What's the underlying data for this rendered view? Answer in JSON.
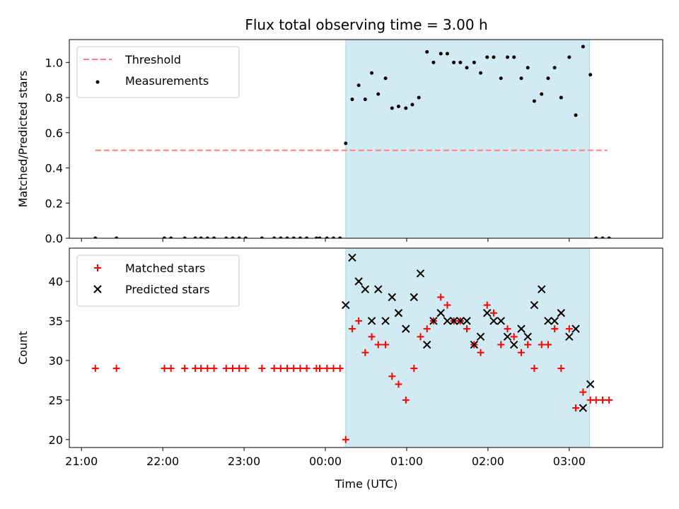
{
  "chart_data": {
    "title": "Flux total observing time = 3.00 h",
    "xlabel": "Time (UTC)",
    "x_ticks": [
      "21:00",
      "22:00",
      "23:00",
      "00:00",
      "01:00",
      "02:00",
      "03:00"
    ],
    "x_tick_hours": [
      21,
      22,
      23,
      24,
      25,
      26,
      27
    ],
    "xlim_hours": [
      20.85,
      28.15
    ],
    "shaded_span_hours": [
      24.25,
      27.25
    ],
    "colors": {
      "threshold": "#ff7f7f",
      "measurements": "#000000",
      "matched": "#ff0000",
      "predicted": "#000000",
      "span": "#add8e6"
    },
    "panels": [
      {
        "type": "scatter",
        "ylabel": "Matched/Predicted stars",
        "ylim": [
          0,
          1.13
        ],
        "y_ticks": [
          "0.0",
          "0.2",
          "0.4",
          "0.6",
          "0.8",
          "1.0"
        ],
        "y_tick_values": [
          0,
          0.2,
          0.4,
          0.6,
          0.8,
          1.0
        ],
        "legend_position": "upper-left",
        "threshold": {
          "name": "Threshold",
          "value": 0.5,
          "x_range": [
            21.17,
            27.47
          ]
        },
        "series": [
          {
            "name": "Measurements",
            "points": [
              [
                21.17,
                0
              ],
              [
                21.43,
                0
              ],
              [
                22.02,
                0
              ],
              [
                22.1,
                0
              ],
              [
                22.27,
                0
              ],
              [
                22.4,
                0
              ],
              [
                22.47,
                0
              ],
              [
                22.55,
                0
              ],
              [
                22.63,
                0
              ],
              [
                22.78,
                0
              ],
              [
                22.86,
                0
              ],
              [
                22.94,
                0
              ],
              [
                23.02,
                0
              ],
              [
                23.22,
                0
              ],
              [
                23.37,
                0
              ],
              [
                23.45,
                0
              ],
              [
                23.53,
                0
              ],
              [
                23.61,
                0
              ],
              [
                23.69,
                0
              ],
              [
                23.77,
                0
              ],
              [
                23.89,
                0
              ],
              [
                23.93,
                0
              ],
              [
                24.02,
                0
              ],
              [
                24.1,
                0
              ],
              [
                24.18,
                0
              ],
              [
                24.25,
                0.54
              ],
              [
                24.33,
                0.79
              ],
              [
                24.41,
                0.87
              ],
              [
                24.49,
                0.79
              ],
              [
                24.57,
                0.94
              ],
              [
                24.65,
                0.82
              ],
              [
                24.74,
                0.91
              ],
              [
                24.82,
                0.74
              ],
              [
                24.9,
                0.75
              ],
              [
                24.99,
                0.74
              ],
              [
                25.07,
                0.76
              ],
              [
                25.15,
                0.8
              ],
              [
                25.25,
                1.06
              ],
              [
                25.33,
                1.0
              ],
              [
                25.42,
                1.05
              ],
              [
                25.5,
                1.05
              ],
              [
                25.58,
                1.0
              ],
              [
                25.66,
                1.0
              ],
              [
                25.74,
                0.97
              ],
              [
                25.83,
                1.0
              ],
              [
                25.91,
                0.94
              ],
              [
                25.99,
                1.03
              ],
              [
                26.07,
                1.03
              ],
              [
                26.16,
                0.91
              ],
              [
                26.24,
                1.03
              ],
              [
                26.32,
                1.03
              ],
              [
                26.41,
                0.91
              ],
              [
                26.49,
                0.97
              ],
              [
                26.57,
                0.78
              ],
              [
                26.66,
                0.82
              ],
              [
                26.74,
                0.91
              ],
              [
                26.82,
                0.97
              ],
              [
                26.9,
                0.8
              ],
              [
                27.0,
                1.03
              ],
              [
                27.08,
                0.7
              ],
              [
                27.17,
                1.09
              ],
              [
                27.26,
                0.93
              ],
              [
                27.33,
                0
              ],
              [
                27.41,
                0
              ],
              [
                27.49,
                0
              ]
            ]
          }
        ]
      },
      {
        "type": "scatter",
        "ylabel": "Count",
        "ylim": [
          19,
          44.2
        ],
        "y_ticks": [
          "20",
          "25",
          "30",
          "35",
          "40"
        ],
        "y_tick_values": [
          20,
          25,
          30,
          35,
          40
        ],
        "legend_position": "upper-left",
        "series": [
          {
            "name": "Matched stars",
            "marker": "plus",
            "points": [
              [
                21.17,
                29
              ],
              [
                21.43,
                29
              ],
              [
                22.02,
                29
              ],
              [
                22.1,
                29
              ],
              [
                22.27,
                29
              ],
              [
                22.4,
                29
              ],
              [
                22.47,
                29
              ],
              [
                22.55,
                29
              ],
              [
                22.63,
                29
              ],
              [
                22.78,
                29
              ],
              [
                22.86,
                29
              ],
              [
                22.94,
                29
              ],
              [
                23.02,
                29
              ],
              [
                23.22,
                29
              ],
              [
                23.37,
                29
              ],
              [
                23.45,
                29
              ],
              [
                23.53,
                29
              ],
              [
                23.61,
                29
              ],
              [
                23.69,
                29
              ],
              [
                23.77,
                29
              ],
              [
                23.89,
                29
              ],
              [
                23.93,
                29
              ],
              [
                24.02,
                29
              ],
              [
                24.1,
                29
              ],
              [
                24.18,
                29
              ],
              [
                24.25,
                20
              ],
              [
                24.33,
                34
              ],
              [
                24.41,
                35
              ],
              [
                24.49,
                31
              ],
              [
                24.57,
                33
              ],
              [
                24.65,
                32
              ],
              [
                24.74,
                32
              ],
              [
                24.82,
                28
              ],
              [
                24.9,
                27
              ],
              [
                24.99,
                25
              ],
              [
                25.09,
                29
              ],
              [
                25.17,
                33
              ],
              [
                25.25,
                34
              ],
              [
                25.33,
                35
              ],
              [
                25.42,
                38
              ],
              [
                25.5,
                37
              ],
              [
                25.58,
                35
              ],
              [
                25.66,
                35
              ],
              [
                25.74,
                34
              ],
              [
                25.83,
                32
              ],
              [
                25.91,
                31
              ],
              [
                25.99,
                37
              ],
              [
                26.07,
                36
              ],
              [
                26.16,
                32
              ],
              [
                26.24,
                34
              ],
              [
                26.32,
                33
              ],
              [
                26.41,
                31
              ],
              [
                26.49,
                32
              ],
              [
                26.57,
                29
              ],
              [
                26.66,
                32
              ],
              [
                26.74,
                32
              ],
              [
                26.82,
                34
              ],
              [
                26.9,
                29
              ],
              [
                27.0,
                34
              ],
              [
                27.08,
                24
              ],
              [
                27.17,
                26
              ],
              [
                27.26,
                25
              ],
              [
                27.33,
                25
              ],
              [
                27.41,
                25
              ],
              [
                27.49,
                25
              ]
            ]
          },
          {
            "name": "Predicted stars",
            "marker": "cross",
            "points": [
              [
                24.25,
                37
              ],
              [
                24.33,
                43
              ],
              [
                24.41,
                40
              ],
              [
                24.49,
                39
              ],
              [
                24.57,
                35
              ],
              [
                24.65,
                39
              ],
              [
                24.74,
                35
              ],
              [
                24.82,
                38
              ],
              [
                24.9,
                36
              ],
              [
                24.99,
                34
              ],
              [
                25.09,
                38
              ],
              [
                25.17,
                41
              ],
              [
                25.25,
                32
              ],
              [
                25.33,
                35
              ],
              [
                25.42,
                36
              ],
              [
                25.5,
                35
              ],
              [
                25.58,
                35
              ],
              [
                25.66,
                35
              ],
              [
                25.74,
                35
              ],
              [
                25.83,
                32
              ],
              [
                25.91,
                33
              ],
              [
                25.99,
                36
              ],
              [
                26.07,
                35
              ],
              [
                26.16,
                35
              ],
              [
                26.24,
                33
              ],
              [
                26.32,
                32
              ],
              [
                26.41,
                34
              ],
              [
                26.49,
                33
              ],
              [
                26.57,
                37
              ],
              [
                26.66,
                39
              ],
              [
                26.74,
                35
              ],
              [
                26.82,
                35
              ],
              [
                26.9,
                36
              ],
              [
                27.0,
                33
              ],
              [
                27.08,
                34
              ],
              [
                27.17,
                24
              ],
              [
                27.26,
                27
              ]
            ]
          }
        ]
      }
    ]
  }
}
